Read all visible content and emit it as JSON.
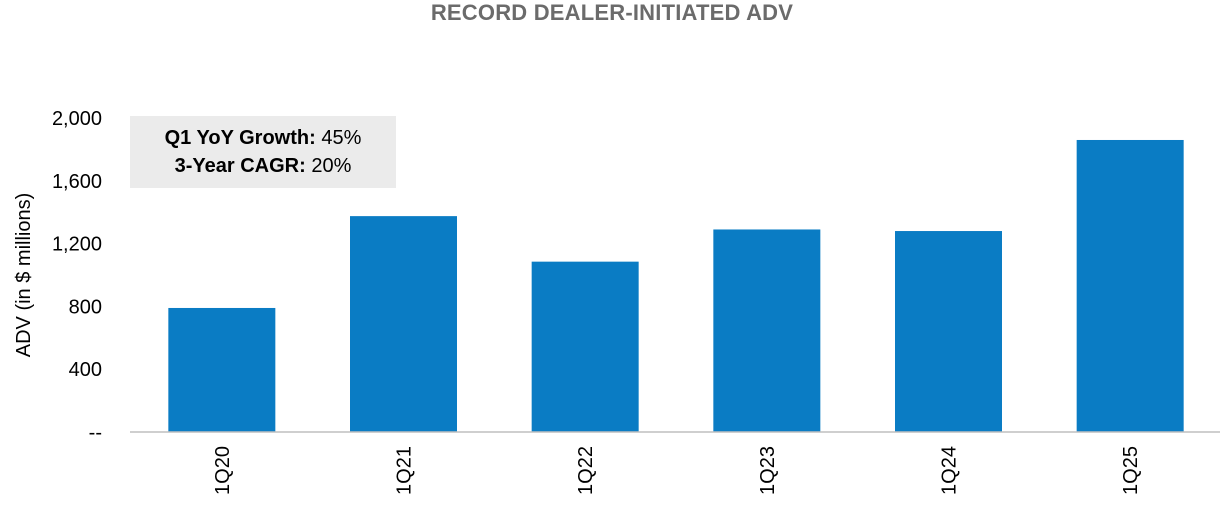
{
  "chart_data": {
    "type": "bar",
    "title": "RECORD DEALER-INITIATED ADV",
    "xlabel": "",
    "ylabel": "ADV (in $ millions)",
    "categories": [
      "1Q20",
      "1Q21",
      "1Q22",
      "1Q23",
      "1Q24",
      "1Q25"
    ],
    "values": [
      790,
      1375,
      1085,
      1290,
      1280,
      1860
    ],
    "ylim": [
      0,
      2000
    ],
    "yticks": [
      0,
      400,
      800,
      1200,
      1600,
      2000
    ],
    "ytick_labels": [
      "--",
      "400",
      "800",
      "1,200",
      "1,600",
      "2,000"
    ],
    "bar_color": "#0a7cc4",
    "grid": false,
    "annotation": {
      "line1_label": "Q1 YoY Growth:",
      "line1_value": " 45%",
      "line2_label": "3-Year CAGR:",
      "line2_value": " 20%"
    }
  }
}
